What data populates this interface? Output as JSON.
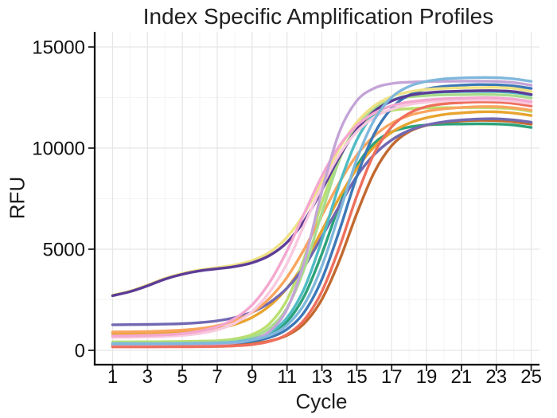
{
  "chart_data": {
    "type": "line",
    "title": "Index Specific Amplification Profiles",
    "xlabel": "Cycle",
    "ylabel": "RFU",
    "x_ticks": [
      1,
      3,
      5,
      7,
      9,
      11,
      13,
      15,
      17,
      19,
      21,
      23,
      25
    ],
    "y_ticks": [
      0,
      5000,
      10000,
      15000
    ],
    "xlim": [
      1,
      25
    ],
    "ylim": [
      0,
      15700
    ],
    "grid": true,
    "legend": "none",
    "axis_color": "#000000",
    "major_grid_color": "#e5e5e5",
    "minor_grid_color": "#f4f4f4",
    "x": [
      1,
      2,
      3,
      4,
      5,
      6,
      7,
      8,
      9,
      10,
      11,
      12,
      13,
      14,
      15,
      16,
      17,
      18,
      19,
      20,
      21,
      22,
      23,
      24,
      25
    ],
    "series": [
      {
        "name": "sea-green",
        "color": "#2BA27A",
        "values": [
          290,
          290,
          290,
          295,
          300,
          310,
          330,
          375,
          495,
          780,
          1420,
          2700,
          4770,
          7170,
          9110,
          10240,
          10800,
          11040,
          11140,
          11180,
          11190,
          11200,
          11190,
          11140,
          11020
        ]
      },
      {
        "name": "brown",
        "color": "#C2692F",
        "values": [
          240,
          240,
          240,
          242,
          245,
          250,
          260,
          280,
          335,
          460,
          740,
          1340,
          2520,
          4430,
          6760,
          8800,
          10120,
          10810,
          11130,
          11280,
          11340,
          11370,
          11360,
          11300,
          11180
        ]
      },
      {
        "name": "amber",
        "color": "#E8A42F",
        "values": [
          825,
          835,
          845,
          865,
          900,
          965,
          1080,
          1280,
          1630,
          2200,
          3080,
          4330,
          5920,
          7560,
          8980,
          10060,
          10780,
          11230,
          11500,
          11660,
          11740,
          11790,
          11790,
          11730,
          11610
        ]
      },
      {
        "name": "chartreuse",
        "color": "#BADF6F",
        "values": [
          420,
          420,
          425,
          430,
          440,
          455,
          475,
          565,
          785,
          1320,
          2500,
          4600,
          7300,
          9580,
          10930,
          11600,
          11860,
          11950,
          11990,
          12000,
          12000,
          12000,
          11990,
          11940,
          11810
        ]
      },
      {
        "name": "slate-purple",
        "color": "#7168B2",
        "values": [
          1265,
          1270,
          1280,
          1295,
          1320,
          1370,
          1460,
          1620,
          1890,
          2360,
          3080,
          4150,
          5620,
          7140,
          8610,
          9680,
          10400,
          10870,
          11140,
          11300,
          11390,
          11440,
          11450,
          11390,
          11280
        ]
      },
      {
        "name": "orange",
        "color": "#F9A55F",
        "values": [
          910,
          915,
          930,
          955,
          1000,
          1075,
          1220,
          1465,
          1880,
          2570,
          3610,
          5020,
          6670,
          8290,
          9650,
          10600,
          11230,
          11610,
          11820,
          11940,
          12010,
          12050,
          12050,
          11990,
          11870
        ]
      },
      {
        "name": "light-green",
        "color": "#A8DC8C",
        "values": [
          370,
          370,
          370,
          375,
          380,
          390,
          415,
          485,
          665,
          1105,
          2100,
          4050,
          6800,
          9410,
          11100,
          11980,
          12370,
          12530,
          12600,
          12630,
          12640,
          12650,
          12640,
          12590,
          12470
        ]
      },
      {
        "name": "teal",
        "color": "#4FBCC4",
        "values": [
          320,
          320,
          320,
          325,
          330,
          340,
          360,
          415,
          555,
          880,
          1610,
          3080,
          5450,
          8200,
          10400,
          11700,
          12340,
          12610,
          12730,
          12770,
          12790,
          12800,
          12790,
          12740,
          12620
        ]
      },
      {
        "name": "salmon",
        "color": "#EE6F5C",
        "values": [
          170,
          170,
          170,
          172,
          175,
          180,
          190,
          220,
          285,
          440,
          785,
          1520,
          2910,
          5090,
          7630,
          9740,
          11050,
          11720,
          12050,
          12190,
          12250,
          12280,
          12270,
          12210,
          12080
        ]
      },
      {
        "name": "dark-blue",
        "color": "#3D78B7",
        "values": [
          310,
          310,
          310,
          315,
          320,
          330,
          345,
          370,
          450,
          635,
          1045,
          1900,
          3510,
          5920,
          8590,
          10700,
          11970,
          12620,
          12920,
          13050,
          13110,
          13140,
          13130,
          13070,
          12950
        ]
      },
      {
        "name": "yellow",
        "color": "#EFE286",
        "values": [
          2730,
          2930,
          3230,
          3560,
          3800,
          3980,
          4090,
          4220,
          4440,
          4850,
          5590,
          6780,
          8360,
          9980,
          11270,
          12090,
          12550,
          12780,
          12900,
          12950,
          12980,
          12990,
          13000,
          12950,
          12800
        ]
      },
      {
        "name": "dark-purple",
        "color": "#5C3C97",
        "values": [
          2700,
          2900,
          3190,
          3520,
          3760,
          3930,
          4030,
          4140,
          4330,
          4690,
          5340,
          6420,
          7930,
          9560,
          10920,
          11820,
          12330,
          12600,
          12730,
          12790,
          12820,
          12840,
          12840,
          12790,
          12650
        ]
      },
      {
        "name": "blush-pink",
        "color": "#F8C9DF",
        "values": [
          640,
          645,
          660,
          685,
          740,
          835,
          1015,
          1340,
          1925,
          2880,
          4290,
          6230,
          8100,
          9680,
          10810,
          11520,
          11920,
          12150,
          12270,
          12330,
          12360,
          12380,
          12370,
          12310,
          12190
        ]
      },
      {
        "name": "pink",
        "color": "#F4A7CF",
        "values": [
          710,
          720,
          740,
          770,
          830,
          950,
          1170,
          1570,
          2250,
          3360,
          4920,
          6790,
          8620,
          10110,
          11120,
          11730,
          12090,
          12280,
          12380,
          12440,
          12470,
          12490,
          12480,
          12420,
          12300
        ]
      },
      {
        "name": "plum",
        "color": "#C4A4D7",
        "values": [
          300,
          300,
          300,
          305,
          310,
          315,
          325,
          375,
          520,
          935,
          2040,
          4410,
          7860,
          10790,
          12340,
          12960,
          13190,
          13260,
          13290,
          13300,
          13310,
          13310,
          13300,
          13240,
          13110
        ]
      },
      {
        "name": "sky-blue",
        "color": "#7FB8DC",
        "values": [
          330,
          330,
          330,
          335,
          340,
          350,
          365,
          405,
          510,
          740,
          1250,
          2290,
          4160,
          6770,
          9440,
          11390,
          12510,
          13050,
          13300,
          13420,
          13470,
          13490,
          13480,
          13420,
          13300
        ]
      }
    ]
  }
}
